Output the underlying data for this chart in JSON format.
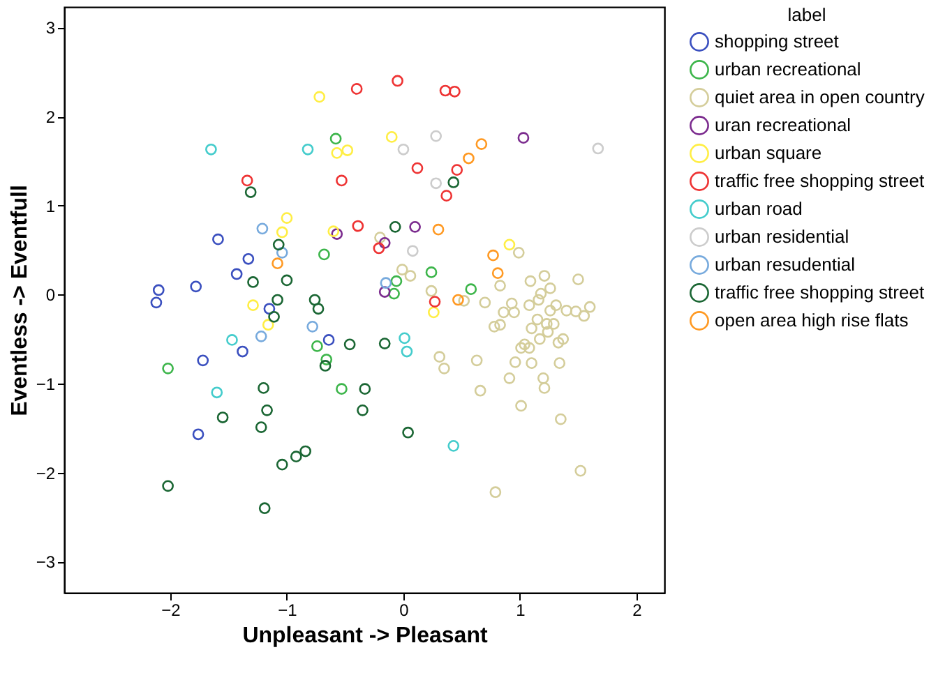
{
  "chart_data": {
    "type": "scatter",
    "xlabel": "Unpleasant -> Pleasant",
    "ylabel": "Eventless -> Eventfull",
    "legend_title": "label",
    "legend": "right",
    "grid": false,
    "marker": "circle",
    "xlim": [
      -2.91,
      2.24
    ],
    "ylim": [
      -3.35,
      3.23
    ],
    "xticks": [
      -2,
      -1,
      0,
      1,
      2
    ],
    "yticks": [
      -3,
      -2,
      -1,
      0,
      1,
      2,
      3
    ],
    "series": [
      {
        "name": "shopping street",
        "color": "#3a4fbf",
        "x": [
          -2.1,
          -2.12,
          -1.78,
          -1.59,
          -1.33,
          -1.43,
          -1.15,
          -0.64,
          -1.38,
          -1.72,
          -1.76
        ],
        "values": [
          0.05,
          -0.09,
          0.09,
          0.62,
          0.4,
          0.23,
          -0.16,
          -0.51,
          -0.64,
          -0.74,
          -1.57
        ]
      },
      {
        "name": "urban recreational",
        "color": "#3cb54a",
        "x": [
          -0.58,
          -0.68,
          0.24,
          -0.06,
          -0.08,
          0.58,
          -2.02,
          -0.74,
          -0.66,
          -0.53
        ],
        "values": [
          1.75,
          0.45,
          0.25,
          0.15,
          0.01,
          0.06,
          -0.83,
          -0.58,
          -0.73,
          -1.06
        ]
      },
      {
        "name": "quiet area in open country",
        "color": "#d4cd9a",
        "x": [
          -0.2,
          -0.01,
          0.06,
          0.24,
          0.52,
          0.7,
          0.99,
          0.83,
          1.09,
          1.21,
          1.26,
          1.18,
          1.16,
          1.5,
          0.93,
          0.86,
          0.95,
          1.08,
          1.26,
          1.31,
          1.4,
          1.48,
          1.55,
          1.6,
          1.15,
          1.23,
          1.29,
          1.1,
          1.24,
          0.83,
          0.78,
          1.17,
          1.33,
          1.37,
          1.01,
          1.04,
          1.08,
          0.31,
          0.35,
          0.63,
          0.96,
          1.1,
          1.34,
          0.91,
          1.2,
          0.66,
          1.21,
          1.01,
          1.35,
          1.52,
          0.79
        ],
        "values": [
          0.64,
          0.28,
          0.21,
          0.04,
          -0.07,
          -0.09,
          0.47,
          0.1,
          0.15,
          0.21,
          0.07,
          0.01,
          -0.06,
          0.17,
          -0.1,
          -0.2,
          -0.2,
          -0.12,
          -0.18,
          -0.12,
          -0.18,
          -0.19,
          -0.24,
          -0.14,
          -0.28,
          -0.33,
          -0.33,
          -0.38,
          -0.42,
          -0.34,
          -0.36,
          -0.5,
          -0.54,
          -0.5,
          -0.6,
          -0.56,
          -0.6,
          -0.7,
          -0.83,
          -0.74,
          -0.76,
          -0.77,
          -0.77,
          -0.94,
          -0.94,
          -1.08,
          -1.05,
          -1.25,
          -1.4,
          -1.98,
          -2.22
        ]
      },
      {
        "name": "uran recreational",
        "color": "#7b2b8e",
        "x": [
          -0.57,
          1.03,
          0.1,
          -0.16,
          -0.16
        ],
        "values": [
          0.68,
          1.76,
          0.76,
          0.58,
          0.03
        ]
      },
      {
        "name": "urban square",
        "color": "#ffee44",
        "x": [
          -0.72,
          -0.57,
          -0.48,
          -1.0,
          -1.04,
          -0.6,
          -0.1,
          0.91,
          0.26,
          -1.29,
          -1.16
        ],
        "values": [
          2.22,
          1.59,
          1.62,
          0.86,
          0.7,
          0.71,
          1.77,
          0.56,
          -0.2,
          -0.12,
          -0.34
        ]
      },
      {
        "name": "traffic free shopping street",
        "color": "#ee3333",
        "x": [
          -0.4,
          -1.34,
          -0.53,
          -0.39,
          -0.05,
          0.36,
          0.44,
          0.12,
          0.46,
          0.37,
          -0.21,
          0.27
        ],
        "values": [
          2.31,
          1.28,
          1.28,
          0.77,
          2.4,
          2.29,
          2.28,
          1.42,
          1.4,
          1.11,
          0.52,
          -0.08
        ]
      },
      {
        "name": "urban road",
        "color": "#44cccc",
        "x": [
          -1.65,
          -0.82,
          -1.47,
          -1.6,
          0.01,
          0.03,
          0.43
        ],
        "values": [
          1.63,
          1.63,
          -0.51,
          -1.1,
          -0.49,
          -0.64,
          -1.7
        ]
      },
      {
        "name": "urban residential",
        "color": "#cccccc",
        "x": [
          0.28,
          0.0,
          1.67,
          0.28,
          0.08
        ],
        "values": [
          1.78,
          1.63,
          1.64,
          1.25,
          0.49
        ]
      },
      {
        "name": "urban resudential",
        "color": "#77aadd",
        "x": [
          -1.21,
          -1.04,
          -1.22,
          -0.78,
          -0.15
        ],
        "values": [
          0.74,
          0.47,
          -0.47,
          -0.36,
          0.13
        ]
      },
      {
        "name": "traffic free shopping street",
        "color": "#1a6633",
        "x": [
          -1.31,
          -1.07,
          -1.29,
          -1.0,
          -1.08,
          -0.76,
          -0.73,
          -1.11,
          -0.46,
          -0.67,
          -1.2,
          -1.17,
          -1.55,
          -1.22,
          -0.84,
          -0.92,
          -1.04,
          -2.02,
          -1.19,
          -0.33,
          -0.35,
          0.43,
          -0.07,
          -0.16,
          0.04
        ],
        "values": [
          1.15,
          0.56,
          0.14,
          0.16,
          -0.06,
          -0.06,
          -0.16,
          -0.25,
          -0.56,
          -0.8,
          -1.05,
          -1.3,
          -1.38,
          -1.49,
          -1.76,
          -1.82,
          -1.91,
          -2.15,
          -2.4,
          -1.06,
          -1.3,
          1.26,
          0.76,
          -0.55,
          -1.55
        ]
      },
      {
        "name": "open area high rise flats",
        "color": "#ff9922",
        "x": [
          -1.08,
          0.67,
          0.56,
          0.3,
          0.77,
          0.81,
          0.47
        ],
        "values": [
          0.35,
          1.69,
          1.53,
          0.73,
          0.44,
          0.24,
          -0.06
        ]
      }
    ]
  }
}
